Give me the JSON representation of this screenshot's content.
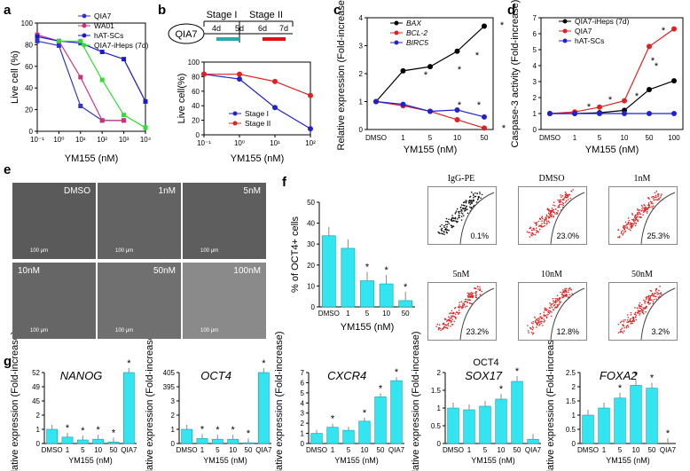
{
  "panel_labels": [
    "a",
    "b",
    "c",
    "d",
    "e",
    "f",
    "g"
  ],
  "chart_data": [
    {
      "id": "a",
      "type": "line",
      "xlabel": "YM155 (nM)",
      "ylabel": "Live cell (%)",
      "xscale": "log",
      "x_ticks": [
        "10⁻¹",
        "10⁰",
        "10¹",
        "10²",
        "10³",
        "10⁴"
      ],
      "ylim": [
        0,
        120
      ],
      "y_ticks": [
        "0",
        "20",
        "40",
        "60",
        "80",
        "100"
      ],
      "series": [
        {
          "name": "QIA7",
          "color": "#3333cc",
          "x": [
            0.1,
            1,
            10,
            100,
            1000
          ],
          "y": [
            100,
            95,
            28,
            12,
            12
          ]
        },
        {
          "name": "WA01",
          "color": "#cc3377",
          "x": [
            0.1,
            1,
            10,
            100,
            1000
          ],
          "y": [
            107,
            100,
            60,
            12,
            12
          ]
        },
        {
          "name": "hAT-SCs",
          "color": "#1a1acc",
          "x": [
            0.1,
            1,
            10,
            100,
            1000,
            10000
          ],
          "y": [
            105,
            100,
            98,
            88,
            80,
            33
          ]
        },
        {
          "name": "QIA7-iHeps (7d)",
          "color": "#33dd33",
          "x": [
            1,
            10,
            100,
            1000,
            10000
          ],
          "y": [
            100,
            100,
            57,
            18,
            4
          ]
        }
      ]
    },
    {
      "id": "b",
      "type": "line",
      "xlabel": "YM155 (nM)",
      "ylabel": "Live cell(%)",
      "xscale": "log",
      "x_ticks": [
        "10⁻¹",
        "10⁰",
        "10¹",
        "10²"
      ],
      "ylim": [
        0,
        120
      ],
      "y_ticks": [
        "0",
        "20",
        "40",
        "60",
        "80",
        "100"
      ],
      "schematic": {
        "cell": "QIA7",
        "stage1": "Stage I",
        "stage2": "Stage II",
        "t": [
          "4d",
          "5d",
          "6d",
          "7d"
        ]
      },
      "series": [
        {
          "name": "Stage I",
          "color": "#2222cc",
          "x": [
            0.1,
            1,
            10,
            100
          ],
          "y": [
            100,
            92,
            45,
            10
          ]
        },
        {
          "name": "Stage II",
          "color": "#dd2222",
          "x": [
            0.1,
            1,
            10,
            100
          ],
          "y": [
            100,
            100,
            88,
            65
          ]
        }
      ]
    },
    {
      "id": "c",
      "type": "line",
      "xlabel": "YM155 (nM)",
      "ylabel": "Relative expression (Fold-increase)",
      "categories": [
        "DMSO",
        "1",
        "5",
        "10",
        "50"
      ],
      "ylim": [
        0,
        4
      ],
      "y_ticks": [
        "0",
        "1",
        "2",
        "3",
        "4"
      ],
      "series": [
        {
          "name": "BAX",
          "color": "#000000",
          "values": [
            1,
            2.1,
            2.25,
            2.8,
            3.7
          ]
        },
        {
          "name": "BCL-2",
          "color": "#dd2222",
          "values": [
            1,
            0.85,
            0.65,
            0.35,
            0.05
          ]
        },
        {
          "name": "BIRC5",
          "color": "#2222cc",
          "values": [
            1,
            0.9,
            0.65,
            0.7,
            0.45
          ]
        }
      ],
      "stars": [
        "*",
        "*",
        "*",
        "*",
        "*",
        "*",
        "*"
      ]
    },
    {
      "id": "d",
      "type": "line",
      "xlabel": "YM155 (nM)",
      "ylabel": "Caspase-3 activity (Fold-increase)",
      "categories": [
        "DMSO",
        "1",
        "5",
        "10",
        "50",
        "100"
      ],
      "ylim": [
        0,
        7
      ],
      "y_ticks": [
        "0",
        "1",
        "2",
        "3",
        "4",
        "5",
        "6",
        "7"
      ],
      "series": [
        {
          "name": "QIA7-iHeps (7d)",
          "color": "#000000",
          "values": [
            1,
            1,
            1.05,
            1.2,
            2.5,
            3.05
          ]
        },
        {
          "name": "QIA7",
          "color": "#dd2222",
          "values": [
            1,
            1.1,
            1.4,
            1.8,
            5.2,
            6.3
          ]
        },
        {
          "name": "hAT-SCs",
          "color": "#2222cc",
          "values": [
            1,
            1,
            1,
            1,
            1,
            1
          ]
        }
      ],
      "stars": [
        "*",
        "*",
        "*",
        "*",
        "*",
        "*"
      ]
    },
    {
      "id": "f",
      "type": "bar",
      "xlabel": "YM155 (nM)",
      "ylabel": "% of OCT4+ cells",
      "categories": [
        "DMSO",
        "1",
        "5",
        "10",
        "50"
      ],
      "values": [
        34,
        28,
        12.5,
        11,
        3
      ],
      "ylim": [
        0,
        50
      ],
      "y_ticks": [
        "0",
        "10",
        "20",
        "30",
        "40",
        "50"
      ],
      "stars": [
        "",
        "",
        "*",
        "*",
        "*"
      ]
    },
    {
      "id": "g1",
      "type": "bar",
      "title": "NANOG",
      "ylabel": "Relative expression (Fold-increase)",
      "xlabel": "YM155 (nM)",
      "categories": [
        "DMSO",
        "1",
        "5",
        "10",
        "50",
        "QIA7"
      ],
      "values": [
        1,
        0.45,
        0.25,
        0.3,
        0.1,
        49
      ],
      "y_ticks": [
        "0",
        "1",
        "2",
        "45",
        "49",
        "52"
      ],
      "stars": [
        "",
        "*",
        "*",
        "*",
        "*",
        "*"
      ]
    },
    {
      "id": "g2",
      "type": "bar",
      "title": "OCT4",
      "ylabel": "Relative expression (Fold-increase)",
      "xlabel": "YM155 (nM)",
      "categories": [
        "DMSO",
        "1",
        "5",
        "10",
        "50",
        "QIA7"
      ],
      "values": [
        1,
        0.35,
        0.3,
        0.3,
        0.05,
        395
      ],
      "y_ticks": [
        "0",
        "1",
        "2",
        "3",
        "395",
        "405"
      ],
      "stars": [
        "",
        "*",
        "*",
        "*",
        "*",
        "*"
      ]
    },
    {
      "id": "g3",
      "type": "bar",
      "title": "CXCR4",
      "ylabel": "Relative expression (Fold-increase)",
      "xlabel": "YM155 (nM)",
      "categories": [
        "DMSO",
        "1",
        "5",
        "10",
        "50",
        "QIA7"
      ],
      "values": [
        1,
        1.6,
        1.3,
        2.2,
        4.6,
        6.2
      ],
      "ylim": [
        0,
        7
      ],
      "y_ticks": [
        "0",
        "1",
        "2",
        "3",
        "4",
        "5",
        "6",
        "7"
      ],
      "stars": [
        "",
        "*",
        "",
        "*",
        "*",
        "*"
      ]
    },
    {
      "id": "g4",
      "type": "bar",
      "title": "SOX17",
      "ylabel": "Relative expression (Fold-increase)",
      "xlabel": "YM155 (nM)",
      "categories": [
        "DMSO",
        "1",
        "5",
        "10",
        "50",
        "QIA7"
      ],
      "values": [
        1,
        0.95,
        1.05,
        1.25,
        1.75,
        0.12
      ],
      "ylim": [
        0,
        2
      ],
      "y_ticks": [
        "0",
        "0.5",
        "1",
        "1.5",
        "2"
      ],
      "stars": [
        "",
        "",
        "",
        "*",
        "*",
        ""
      ]
    },
    {
      "id": "g5",
      "type": "bar",
      "title": "FOXA2",
      "ylabel": "Relative expression (Fold-increase)",
      "xlabel": "YM155 (nM)",
      "categories": [
        "DMSO",
        "1",
        "5",
        "10",
        "50",
        "QIA7"
      ],
      "values": [
        1,
        1.25,
        1.6,
        2.05,
        1.95,
        0
      ],
      "ylim": [
        0,
        2.5
      ],
      "y_ticks": [
        "0",
        "0.5",
        "1",
        "1.5",
        "2",
        "2.5"
      ],
      "stars": [
        "",
        "",
        "*",
        "*",
        "*",
        "*"
      ]
    }
  ],
  "panel_e": {
    "labels": [
      "DMSO",
      "1nM",
      "5nM",
      "10nM",
      "50nM",
      "100nM"
    ],
    "scale": "100 μm"
  },
  "panel_f_flow": {
    "titles": [
      "IgG-PE",
      "DMSO",
      "1nM",
      "5nM",
      "10nM",
      "50nM"
    ],
    "percents": [
      "0.1%",
      "23.0%",
      "25.3%",
      "23.2%",
      "12.8%",
      "3.2%"
    ],
    "xlabel": "OCT4"
  },
  "colors": {
    "bar": "#33e5f0",
    "bar_edge": "#1a9aa8"
  }
}
